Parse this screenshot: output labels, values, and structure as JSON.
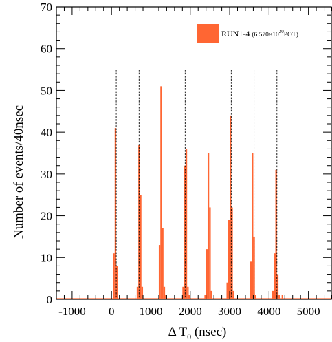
{
  "chart_data": {
    "type": "bar",
    "xlabel_prefix": "Δ T",
    "xlabel_subscript": "0",
    "xlabel_suffix": " (nsec)",
    "ylabel": "Number of events/40nsec",
    "xlim": [
      -1400,
      5600
    ],
    "ylim": [
      0,
      70
    ],
    "bin_width": 40,
    "x_ticks": [
      -1000,
      0,
      1000,
      2000,
      3000,
      4000,
      5000
    ],
    "x_tick_labels": [
      "-1000",
      "0",
      "1000",
      "2000",
      "3000",
      "4000",
      "5000"
    ],
    "y_ticks": [
      0,
      10,
      20,
      30,
      40,
      50,
      60,
      70
    ],
    "y_tick_labels": [
      "0",
      "10",
      "20",
      "30",
      "40",
      "50",
      "60",
      "70"
    ],
    "bar_color": "#ff6633",
    "legend": {
      "position": "top-right",
      "main": "RUN1-4",
      "detail_open": "(6.570×10",
      "detail_sup": "20",
      "detail_close": "POT)"
    },
    "bunch_lines": [
      120,
      700,
      1280,
      1870,
      2450,
      3040,
      3620,
      4200
    ],
    "bins": [
      {
        "x": 40,
        "y": 11
      },
      {
        "x": 80,
        "y": 41
      },
      {
        "x": 120,
        "y": 8
      },
      {
        "x": 640,
        "y": 3
      },
      {
        "x": 680,
        "y": 37
      },
      {
        "x": 720,
        "y": 25
      },
      {
        "x": 760,
        "y": 3
      },
      {
        "x": 1200,
        "y": 13
      },
      {
        "x": 1240,
        "y": 51
      },
      {
        "x": 1280,
        "y": 17
      },
      {
        "x": 1320,
        "y": 3
      },
      {
        "x": 1360,
        "y": 1
      },
      {
        "x": 1800,
        "y": 3
      },
      {
        "x": 1840,
        "y": 32
      },
      {
        "x": 1880,
        "y": 36
      },
      {
        "x": 1920,
        "y": 3
      },
      {
        "x": 1960,
        "y": 1
      },
      {
        "x": 2360,
        "y": 1
      },
      {
        "x": 2400,
        "y": 12
      },
      {
        "x": 2440,
        "y": 35
      },
      {
        "x": 2480,
        "y": 22
      },
      {
        "x": 2520,
        "y": 2
      },
      {
        "x": 2920,
        "y": 4
      },
      {
        "x": 2960,
        "y": 19
      },
      {
        "x": 3000,
        "y": 44
      },
      {
        "x": 3040,
        "y": 22
      },
      {
        "x": 3080,
        "y": 2
      },
      {
        "x": 3520,
        "y": 9
      },
      {
        "x": 3560,
        "y": 35
      },
      {
        "x": 3600,
        "y": 15
      },
      {
        "x": 3640,
        "y": 1
      },
      {
        "x": 4080,
        "y": 2
      },
      {
        "x": 4120,
        "y": 11
      },
      {
        "x": 4160,
        "y": 31
      },
      {
        "x": 4200,
        "y": 6
      },
      {
        "x": 4240,
        "y": 1
      },
      {
        "x": 4320,
        "y": 1
      }
    ]
  }
}
